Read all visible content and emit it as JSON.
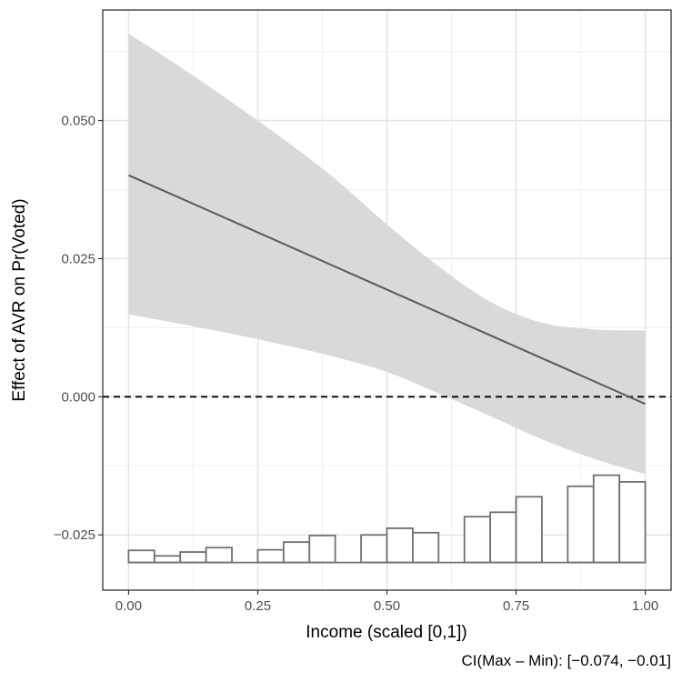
{
  "chart_data": {
    "type": "line",
    "xlabel": "Income (scaled [0,1])",
    "ylabel": "Effect of AVR on Pr(Voted)",
    "caption": "CI(Max – Min): [−0.074, −0.01]",
    "xlim": [
      -0.05,
      1.05
    ],
    "ylim": [
      -0.035,
      0.07
    ],
    "x_ticks": [
      0.0,
      0.25,
      0.5,
      0.75,
      1.0
    ],
    "x_tick_labels": [
      "0.00",
      "0.25",
      "0.50",
      "0.75",
      "1.00"
    ],
    "y_ticks": [
      -0.025,
      0.0,
      0.025,
      0.05
    ],
    "y_tick_labels": [
      "−0.025",
      "0.000",
      "0.025",
      "0.050"
    ],
    "grid": true,
    "reference_line": {
      "y": 0.0,
      "style": "dashed"
    },
    "effect_line": {
      "x": [
        0.0,
        1.0
      ],
      "y": [
        0.0401,
        -0.0013
      ]
    },
    "confidence_band": {
      "x": [
        0.0,
        0.1,
        0.2,
        0.3,
        0.4,
        0.5,
        0.6,
        0.7,
        0.8,
        0.9,
        1.0
      ],
      "lower": [
        0.0149,
        0.0132,
        0.0114,
        0.0094,
        0.0072,
        0.0045,
        0.0006,
        -0.0035,
        -0.0077,
        -0.0112,
        -0.014
      ],
      "upper": [
        0.0657,
        0.0597,
        0.0533,
        0.0466,
        0.0394,
        0.0312,
        0.0236,
        0.0172,
        0.0134,
        0.0122,
        0.012
      ]
    },
    "histogram": {
      "baseline": -0.03,
      "bin_width": 0.05,
      "bin_starts": [
        0.0,
        0.05,
        0.1,
        0.15,
        0.2,
        0.25,
        0.3,
        0.35,
        0.4,
        0.45,
        0.5,
        0.55,
        0.6,
        0.65,
        0.7,
        0.75,
        0.8,
        0.85,
        0.9,
        0.95
      ],
      "tops": [
        -0.0278,
        -0.0288,
        -0.0281,
        -0.0273,
        -0.03,
        -0.0277,
        -0.0263,
        -0.0251,
        -0.03,
        -0.025,
        -0.0238,
        -0.0246,
        -0.03,
        -0.0217,
        -0.0209,
        -0.0181,
        -0.03,
        -0.0162,
        -0.0142,
        -0.0154
      ]
    }
  }
}
